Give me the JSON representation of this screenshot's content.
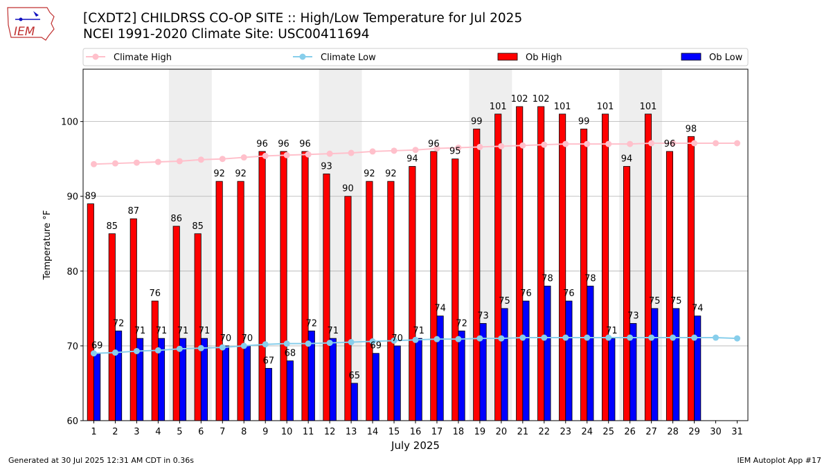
{
  "header": {
    "title_line1": "[CXDT2] CHILDRSS CO-OP SITE :: High/Low Temperature for Jul 2025",
    "title_line2": "NCEI 1991-2020 Climate Site: USC00411694",
    "logo_text": "IEM"
  },
  "footer": {
    "generated": "Generated at 30 Jul 2025 12:31 AM CDT in 0.36s",
    "app": "IEM Autoplot App #17"
  },
  "colors": {
    "ob_high": "#ff0000",
    "ob_low": "#0000ff",
    "climate_high": "#ffc0cb",
    "climate_low": "#87ceeb",
    "weekend_shade": "#eeeeee",
    "grid": "#b0b0b0"
  },
  "chart_data": {
    "type": "bar",
    "title": "[CXDT2] CHILDRSS CO-OP SITE :: High/Low Temperature for Jul 2025",
    "xlabel": "July 2025",
    "ylabel": "Temperature °F",
    "ylim": [
      60,
      107
    ],
    "yticks": [
      60,
      70,
      80,
      90,
      100
    ],
    "grid": "horizontal",
    "legend_position": "top",
    "categories": [
      "1",
      "2",
      "3",
      "4",
      "5",
      "6",
      "7",
      "8",
      "9",
      "10",
      "11",
      "12",
      "13",
      "14",
      "15",
      "16",
      "17",
      "18",
      "19",
      "20",
      "21",
      "22",
      "23",
      "24",
      "25",
      "26",
      "27",
      "28",
      "29",
      "30",
      "31"
    ],
    "shaded_days": [
      [
        5,
        6
      ],
      [
        12,
        13
      ],
      [
        19,
        20
      ],
      [
        26,
        27
      ]
    ],
    "series": [
      {
        "name": "Climate High",
        "kind": "line",
        "values": [
          94.3,
          94.4,
          94.5,
          94.6,
          94.7,
          94.9,
          95.0,
          95.2,
          95.4,
          95.5,
          95.6,
          95.7,
          95.8,
          96.0,
          96.1,
          96.2,
          96.4,
          96.5,
          96.6,
          96.7,
          96.8,
          96.9,
          97.0,
          97.0,
          97.0,
          97.0,
          97.1,
          97.1,
          97.1,
          97.1,
          97.1
        ]
      },
      {
        "name": "Climate Low",
        "kind": "line",
        "values": [
          69.0,
          69.1,
          69.3,
          69.4,
          69.6,
          69.7,
          69.8,
          70.0,
          70.2,
          70.3,
          70.3,
          70.4,
          70.5,
          70.6,
          70.7,
          70.8,
          70.9,
          70.9,
          71.0,
          71.0,
          71.1,
          71.1,
          71.1,
          71.1,
          71.1,
          71.1,
          71.1,
          71.1,
          71.1,
          71.1,
          71.0
        ]
      },
      {
        "name": "Ob High",
        "kind": "bar",
        "values": [
          89,
          85,
          87,
          76,
          86,
          85,
          92,
          92,
          96,
          96,
          96,
          93,
          90,
          92,
          92,
          94,
          96,
          95,
          99,
          101,
          102,
          102,
          101,
          99,
          101,
          94,
          101,
          96,
          98,
          null,
          null
        ]
      },
      {
        "name": "Ob Low",
        "kind": "bar",
        "values": [
          69,
          72,
          71,
          71,
          71,
          71,
          70,
          70,
          67,
          68,
          72,
          71,
          65,
          69,
          70,
          71,
          74,
          72,
          73,
          75,
          76,
          78,
          76,
          78,
          71,
          73,
          75,
          75,
          74,
          null,
          null
        ]
      }
    ]
  }
}
